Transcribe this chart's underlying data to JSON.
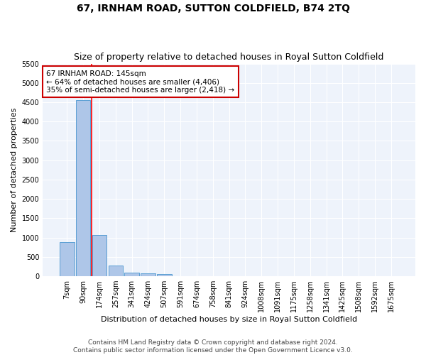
{
  "title": "67, IRNHAM ROAD, SUTTON COLDFIELD, B74 2TQ",
  "subtitle": "Size of property relative to detached houses in Royal Sutton Coldfield",
  "xlabel": "Distribution of detached houses by size in Royal Sutton Coldfield",
  "ylabel": "Number of detached properties",
  "footer_line1": "Contains HM Land Registry data © Crown copyright and database right 2024.",
  "footer_line2": "Contains public sector information licensed under the Open Government Licence v3.0.",
  "annotation_title": "67 IRNHAM ROAD: 145sqm",
  "annotation_line2": "← 64% of detached houses are smaller (4,406)",
  "annotation_line3": "35% of semi-detached houses are larger (2,418) →",
  "bar_color": "#aec6e8",
  "bar_edge_color": "#5a9fd4",
  "red_line_x": 1.5,
  "categories": [
    "7sqm",
    "90sqm",
    "174sqm",
    "257sqm",
    "341sqm",
    "424sqm",
    "507sqm",
    "591sqm",
    "674sqm",
    "758sqm",
    "841sqm",
    "924sqm",
    "1008sqm",
    "1091sqm",
    "1175sqm",
    "1258sqm",
    "1341sqm",
    "1425sqm",
    "1508sqm",
    "1592sqm",
    "1675sqm"
  ],
  "values": [
    880,
    4560,
    1060,
    285,
    85,
    70,
    50,
    0,
    0,
    0,
    0,
    0,
    0,
    0,
    0,
    0,
    0,
    0,
    0,
    0,
    0
  ],
  "ylim": [
    0,
    5500
  ],
  "yticks": [
    0,
    500,
    1000,
    1500,
    2000,
    2500,
    3000,
    3500,
    4000,
    4500,
    5000,
    5500
  ],
  "background_color": "#eef3fb",
  "grid_color": "#ffffff",
  "annotation_box_color": "#ffffff",
  "annotation_box_edge_color": "#cc0000",
  "title_fontsize": 10,
  "subtitle_fontsize": 9,
  "axis_label_fontsize": 8,
  "tick_fontsize": 7,
  "annotation_fontsize": 7.5,
  "footer_fontsize": 6.5
}
